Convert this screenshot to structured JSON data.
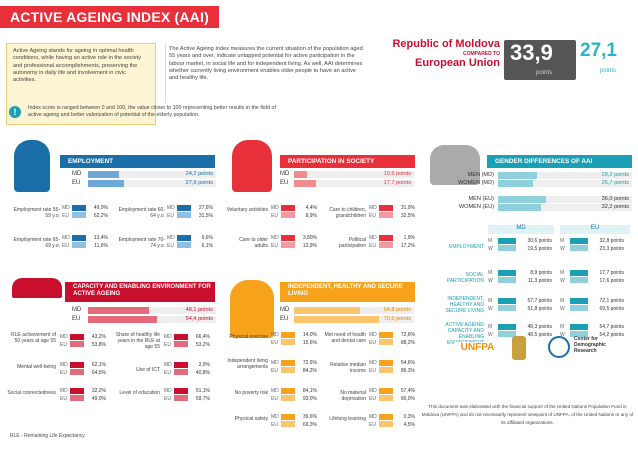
{
  "header": {
    "title": "ACTIVE AGEING INDEX (AAI)"
  },
  "intro": {
    "left": "Active Ageing stands for ageing in optimal health conditions, while having an active role in the society and professional accomplishments, preserving the autonomy in daily life and involvement in civic activities.",
    "right": "The Active Ageing Index measures the current situation of the population aged 55 years and over, indicate untapped potential for active participation in the labour market, in social life and for independent living. As well, AAI determines whether currently living environment enables older people to have an active and healthy life."
  },
  "comparison": {
    "country": "Republic of Moldova",
    "compared_to": "COMPARED TO",
    "union": "European Union",
    "md_score": "33,9",
    "md_points": "points",
    "eu_score": "27,1",
    "eu_points": "points"
  },
  "note": {
    "icon": "!",
    "text": "Index score is ranged between 0 and 100, the value closer to 100 representing better results in the field of active ageing and better valorization of potential of the elderly population."
  },
  "employment": {
    "title": "EMPLOYMENT",
    "md_label": "MD",
    "eu_label": "EU",
    "md": {
      "value": "24,2 points",
      "pct": 0.24
    },
    "eu": {
      "value": "27,9 points",
      "pct": 0.28
    },
    "indicators": [
      {
        "label": "Employment rate 55-59 y.o.",
        "md": "49,0%",
        "eu": "62,2%"
      },
      {
        "label": "Employment rate 60-64 y.o.",
        "md": "27,6%",
        "eu": "31,5%"
      },
      {
        "label": "Employment rate 65-69 y.o.",
        "md": "13,4%",
        "eu": "11,6%"
      },
      {
        "label": "Employment rate 70-74 y.o.",
        "md": "6,6%",
        "eu": "6,1%"
      }
    ]
  },
  "participation": {
    "title": "PARTICIPATION IN SOCIETY",
    "md_label": "MD",
    "eu_label": "EU",
    "md": {
      "value": "10,6 points",
      "pct": 0.11
    },
    "eu": {
      "value": "17,7 points",
      "pct": 0.18
    },
    "indicators": [
      {
        "label": "Voluntary activities",
        "md": "4,4%",
        "eu": "8,9%"
      },
      {
        "label": "Care to children, grandchildren",
        "md": "31,0%",
        "eu": "32,5%"
      },
      {
        "label": "Care to older adults",
        "md": "3,80%",
        "eu": "12,9%"
      },
      {
        "label": "Political participation",
        "md": "1,9%",
        "eu": "17,2%"
      }
    ]
  },
  "gender": {
    "title": "GENDER DIFFERENCES OF AAI",
    "rows": [
      {
        "label": "MEN (MD)",
        "value": "29,2 points",
        "pct": 0.29
      },
      {
        "label": "WOMEN (MD)",
        "value": "25,7 points",
        "pct": 0.26
      },
      {
        "label": "MEN (EU)",
        "value": "36,0 points",
        "pct": 0.36
      },
      {
        "label": "WOMEN (EU)",
        "value": "32,2 points",
        "pct": 0.32
      }
    ],
    "col_md": "MD",
    "col_eu": "EU",
    "domains": [
      {
        "label": "EMPLOYMENT",
        "md_m": "30,6 points",
        "md_w": "19,5 points",
        "eu_m": "32,8 points",
        "eu_w": "23,3 points"
      },
      {
        "label": "SOCIAL PARTICIPATION",
        "md_m": "8,9 points",
        "md_w": "11,3 points",
        "eu_m": "17,7 points",
        "eu_w": "17,6 points"
      },
      {
        "label": "INDEPENDENT, HEALTHY AND SECURE LIVING",
        "md_m": "57,7 points",
        "md_w": "51,8 points",
        "eu_m": "72,1 points",
        "eu_w": "69,5 points"
      },
      {
        "label": "ACTIVE AGEING CAPACITY AND ENABLING ENVIRONMENT",
        "md_m": "48,3 points",
        "md_w": "48,5 points",
        "eu_m": "54,7 points",
        "eu_w": "54,2 points"
      }
    ],
    "m": "M",
    "w": "W"
  },
  "capacity": {
    "title": "CAPACITY AND ENABLING ENVIRONMENT FOR ACTIVE AGEING",
    "md_label": "MD",
    "eu_label": "EU",
    "md": {
      "value": "48,1 points",
      "pct": 0.48
    },
    "eu": {
      "value": "54,4 points",
      "pct": 0.54
    },
    "indicators": [
      {
        "label": "RLE achievement of 50 years at age 55",
        "md": "43,2%",
        "eu": "53,8%"
      },
      {
        "label": "Share of healthy life years in the RLE at age 55",
        "md": "66,4%",
        "eu": "53,2%"
      },
      {
        "label": "Mental well-being",
        "md": "62,1%",
        "eu": "64,5%"
      },
      {
        "label": "Use of ICT",
        "md": "2,9%",
        "eu": "40,8%"
      },
      {
        "label": "Social connectedness",
        "md": "32,2%",
        "eu": "49,0%"
      },
      {
        "label": "Level of education",
        "md": "51,1%",
        "eu": "59,7%"
      }
    ],
    "footnote": "RLE - Remaining Life Expectancy"
  },
  "independent": {
    "title": "INDEPENDENT, HEALTHY AND SECURE LIVING",
    "md_label": "MD",
    "eu_label": "EU",
    "md": {
      "value": "54,8 points",
      "pct": 0.55
    },
    "eu": {
      "value": "70,6 points",
      "pct": 0.71
    },
    "indicators": [
      {
        "label": "Physical exercise",
        "md": "14,0%",
        "eu": "15,6%"
      },
      {
        "label": "Met need of health and dental care",
        "md": "72,6%",
        "eu": "88,2%"
      },
      {
        "label": "Independent living arrangements",
        "md": "72,6%",
        "eu": "84,2%"
      },
      {
        "label": "Relative median income",
        "md": "54,6%",
        "eu": "86,3%"
      },
      {
        "label": "No poverty risk",
        "md": "84,1%",
        "eu": "93,0%"
      },
      {
        "label": "No material deprivation",
        "md": "57,4%",
        "eu": "90,0%"
      },
      {
        "label": "Physical safety",
        "md": "39,6%",
        "eu": "69,3%"
      },
      {
        "label": "Lifelong learning",
        "md": "0,3%",
        "eu": "4,5%"
      }
    ]
  },
  "footer": {
    "text": "This document was elaborated with the financial support of the United Nations Population Fund in Moldova (UNFPA) and do not necessarily represent viewpoint of UNFPA, of the United Nations or any of its affiliated organizations.",
    "logo1": "UNFPA",
    "logo2": "Center for Demographic Research"
  },
  "colors": {
    "employment": "#1b6fa8",
    "participation": "#e8303a",
    "gender": "#1b9fb4",
    "capacity": "#c8102e",
    "independent": "#f7a21b"
  }
}
